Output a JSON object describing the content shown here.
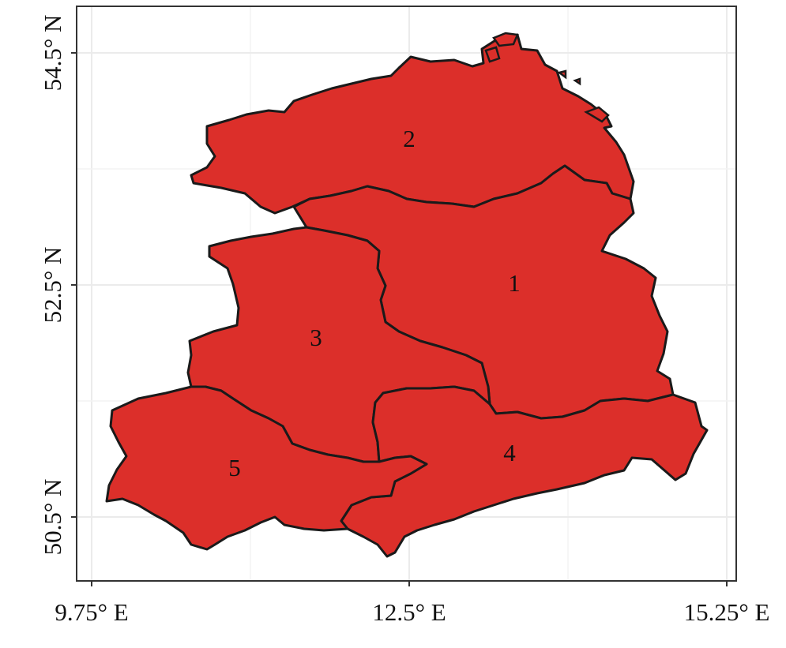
{
  "chart_data": {
    "type": "map",
    "title": "",
    "xlabel": "",
    "ylabel": "",
    "x_ticks": [
      {
        "value": 9.75,
        "label": "9.75° E"
      },
      {
        "value": 12.5,
        "label": "12.5° E"
      },
      {
        "value": 15.25,
        "label": "15.25° E"
      }
    ],
    "y_ticks": [
      {
        "value": 54.5,
        "label": "54.5° N"
      },
      {
        "value": 52.5,
        "label": "52.5° N"
      },
      {
        "value": 50.5,
        "label": "50.5° N"
      }
    ],
    "xlim": [
      9.55,
      15.6
    ],
    "ylim": [
      49.95,
      54.9
    ],
    "grid": true,
    "fill_color": "#dc2f2a",
    "border_color": "#1a1a1a",
    "regions": [
      {
        "id": 1,
        "label": "1"
      },
      {
        "id": 2,
        "label": "2"
      },
      {
        "id": 3,
        "label": "3"
      },
      {
        "id": 4,
        "label": "4"
      },
      {
        "id": 5,
        "label": "5"
      }
    ]
  }
}
